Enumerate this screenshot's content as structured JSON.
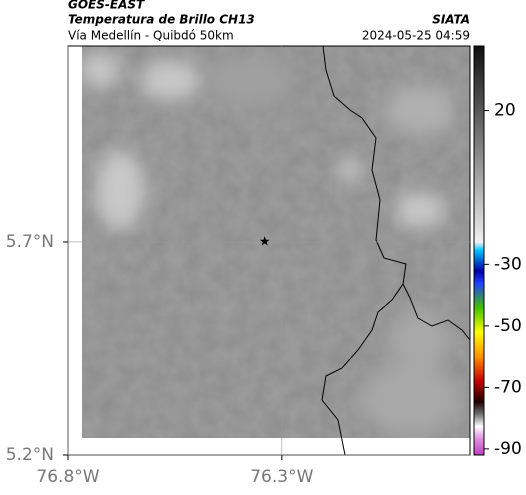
{
  "header": {
    "title": "GOES-EAST",
    "subtitle": "Temperatura de Brillo CH13",
    "location": "Vía Medellín - Quibdó 50km",
    "source": "SIATA",
    "datetime": "2024-05-25 04:59"
  },
  "map": {
    "xlim": [
      -76.8,
      -75.86
    ],
    "ylim": [
      5.2,
      6.16
    ],
    "xticks": [
      {
        "value": -76.8,
        "label": "76.8°W"
      },
      {
        "value": -76.3,
        "label": "76.3°W"
      }
    ],
    "yticks": [
      {
        "value": 5.7,
        "label": "5.7°N"
      },
      {
        "value": 5.2,
        "label": "5.2°N"
      }
    ],
    "marker": {
      "lon": -76.34,
      "lat": 5.7
    }
  },
  "colorbar": {
    "lim": [
      -92,
      41
    ],
    "ticks": [
      20,
      -30,
      -50,
      -70,
      -90
    ]
  }
}
